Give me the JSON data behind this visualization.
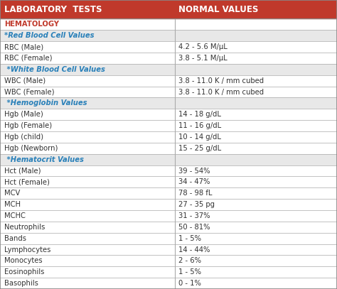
{
  "header_col1": "LABORATORY  TESTS",
  "header_col2": "NORMAL VALUES",
  "header_bg": "#c0392b",
  "header_text_color": "#ffffff",
  "background_color": "#ffffff",
  "col_divider": 0.52,
  "rows": [
    {
      "label": "HEMATOLOGY",
      "value": "",
      "type": "section",
      "text_color": "#c0392b"
    },
    {
      "label": "*Red Blood Cell Values",
      "value": "",
      "type": "subsection",
      "text_color": "#2980b9"
    },
    {
      "label": "RBC (Male)",
      "value": "4.2 - 5.6 M/μL",
      "type": "data",
      "text_color": "#333333"
    },
    {
      "label": "RBC (Female)",
      "value": "3.8 - 5.1 M/μL",
      "type": "data",
      "text_color": "#333333"
    },
    {
      "label": " *White Blood Cell Values",
      "value": "",
      "type": "subsection",
      "text_color": "#2980b9"
    },
    {
      "label": "WBC (Male)",
      "value": "3.8 - 11.0 K / mm cubed",
      "type": "data",
      "text_color": "#333333"
    },
    {
      "label": "WBC (Female)",
      "value": "3.8 - 11.0 K / mm cubed",
      "type": "data",
      "text_color": "#333333"
    },
    {
      "label": " *Hemoglobin Values",
      "value": "",
      "type": "subsection",
      "text_color": "#2980b9"
    },
    {
      "label": "Hgb (Male)",
      "value": "14 - 18 g/dL",
      "type": "data",
      "text_color": "#333333"
    },
    {
      "label": "Hgb (Female)",
      "value": "11 - 16 g/dL",
      "type": "data",
      "text_color": "#333333"
    },
    {
      "label": "Hgb (child)",
      "value": "10 - 14 g/dL",
      "type": "data",
      "text_color": "#333333"
    },
    {
      "label": "Hgb (Newborn)",
      "value": "15 - 25 g/dL",
      "type": "data",
      "text_color": "#333333"
    },
    {
      "label": " *Hematocrit Values",
      "value": "",
      "type": "subsection",
      "text_color": "#2980b9"
    },
    {
      "label": "Hct (Male)",
      "value": "39 - 54%",
      "type": "data",
      "text_color": "#333333"
    },
    {
      "label": "Hct (Female)",
      "value": "34 - 47%",
      "type": "data",
      "text_color": "#333333"
    },
    {
      "label": "MCV",
      "value": "78 - 98 fL",
      "type": "data",
      "text_color": "#333333"
    },
    {
      "label": "MCH",
      "value": "27 - 35 pg",
      "type": "data",
      "text_color": "#333333"
    },
    {
      "label": "MCHC",
      "value": "31 - 37%",
      "type": "data",
      "text_color": "#333333"
    },
    {
      "label": "Neutrophils",
      "value": "50 - 81%",
      "type": "data",
      "text_color": "#333333"
    },
    {
      "label": "Bands",
      "value": "1 - 5%",
      "type": "data",
      "text_color": "#333333"
    },
    {
      "label": "Lymphocytes",
      "value": "14 - 44%",
      "type": "data",
      "text_color": "#333333"
    },
    {
      "label": "Monocytes",
      "value": "2 - 6%",
      "type": "data",
      "text_color": "#333333"
    },
    {
      "label": "Eosinophils",
      "value": "1 - 5%",
      "type": "data",
      "text_color": "#333333"
    },
    {
      "label": "Basophils",
      "value": "0 - 1%",
      "type": "data",
      "text_color": "#333333"
    }
  ],
  "outer_border_color": "#888888",
  "grid_color": "#aaaaaa",
  "font_size": 7.2,
  "header_font_size": 8.5
}
